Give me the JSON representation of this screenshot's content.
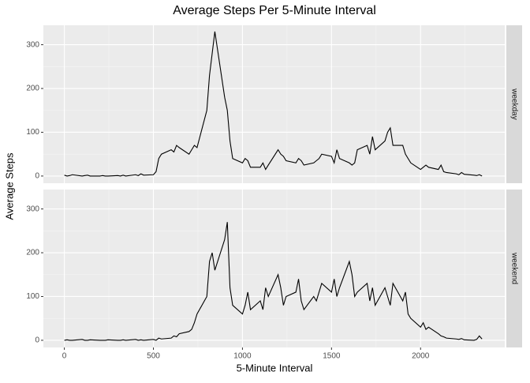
{
  "chart_data": {
    "type": "line",
    "title": "Average Steps Per 5-Minute Interval",
    "x_label": "5-Minute Interval",
    "y_label": "Average Steps",
    "x": [
      0,
      15,
      30,
      45,
      100,
      115,
      130,
      145,
      200,
      215,
      230,
      245,
      300,
      315,
      330,
      345,
      400,
      415,
      430,
      445,
      500,
      515,
      530,
      545,
      600,
      615,
      630,
      645,
      700,
      715,
      730,
      745,
      800,
      815,
      830,
      845,
      900,
      915,
      930,
      945,
      1000,
      1015,
      1030,
      1045,
      1100,
      1115,
      1130,
      1145,
      1200,
      1215,
      1230,
      1245,
      1300,
      1315,
      1330,
      1345,
      1400,
      1415,
      1430,
      1445,
      1500,
      1515,
      1530,
      1545,
      1600,
      1615,
      1630,
      1645,
      1700,
      1715,
      1730,
      1745,
      1800,
      1815,
      1830,
      1845,
      1900,
      1915,
      1930,
      1945,
      2000,
      2015,
      2030,
      2045,
      2100,
      2115,
      2130,
      2145,
      2200,
      2215,
      2230,
      2245,
      2300,
      2315,
      2330,
      2345
    ],
    "series": [
      {
        "name": "weekday",
        "color": "#000000",
        "values": [
          2,
          0,
          1,
          3,
          0,
          1,
          2,
          0,
          0,
          1,
          0,
          0,
          1,
          0,
          2,
          0,
          3,
          1,
          5,
          2,
          3,
          10,
          40,
          50,
          60,
          55,
          70,
          65,
          50,
          60,
          70,
          65,
          150,
          230,
          280,
          330,
          180,
          150,
          80,
          40,
          30,
          40,
          35,
          20,
          20,
          30,
          15,
          25,
          60,
          50,
          45,
          35,
          30,
          40,
          35,
          25,
          30,
          35,
          40,
          50,
          45,
          30,
          60,
          40,
          30,
          25,
          30,
          60,
          70,
          50,
          90,
          60,
          80,
          100,
          110,
          70,
          70,
          50,
          40,
          30,
          15,
          20,
          25,
          20,
          15,
          25,
          10,
          8,
          5,
          3,
          8,
          4,
          2,
          1,
          3,
          0
        ]
      },
      {
        "name": "weekend",
        "color": "#000000",
        "values": [
          0,
          1,
          0,
          0,
          2,
          0,
          0,
          1,
          0,
          0,
          0,
          1,
          0,
          0,
          1,
          0,
          2,
          0,
          1,
          0,
          2,
          0,
          5,
          3,
          5,
          10,
          8,
          15,
          20,
          25,
          40,
          60,
          100,
          180,
          200,
          160,
          230,
          270,
          120,
          80,
          60,
          80,
          110,
          70,
          90,
          70,
          120,
          100,
          150,
          120,
          80,
          100,
          110,
          140,
          90,
          70,
          100,
          90,
          110,
          130,
          110,
          140,
          100,
          120,
          180,
          150,
          100,
          110,
          130,
          90,
          120,
          80,
          120,
          100,
          80,
          130,
          90,
          110,
          60,
          50,
          30,
          40,
          25,
          30,
          15,
          10,
          8,
          5,
          3,
          2,
          4,
          1,
          0,
          2,
          10,
          3
        ]
      }
    ],
    "xlim": [
      -117.75,
      2472.75
    ],
    "xticks": [
      0,
      500,
      1000,
      1500,
      2000
    ],
    "xminor": [
      250,
      750,
      1250,
      1750,
      2250
    ],
    "ylim": [
      -16.4,
      344.4
    ],
    "yticks": [
      0,
      100,
      200,
      300
    ],
    "yminor": [
      50,
      150,
      250
    ],
    "grid": true
  }
}
